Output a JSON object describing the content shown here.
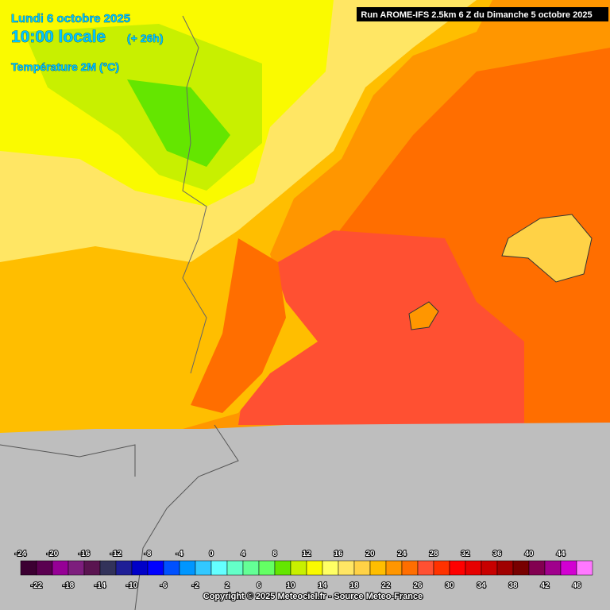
{
  "header": {
    "date": "Lundi 6 octobre 2025",
    "time": "10:00 locale",
    "lead": "(+ 26h)",
    "parameter": "Température 2M (°C)",
    "run": "Run AROME-IFS 2.5km 6 Z du Dimanche 5 octobre 2025"
  },
  "legend": {
    "top_labels": [
      "-24",
      "-20",
      "-16",
      "-12",
      "-8",
      "-4",
      "0",
      "4",
      "8",
      "12",
      "16",
      "20",
      "24",
      "28",
      "32",
      "36",
      "40",
      "44"
    ],
    "bottom_labels": [
      "-22",
      "-18",
      "-14",
      "-10",
      "-6",
      "-2",
      "2",
      "6",
      "10",
      "14",
      "18",
      "22",
      "26",
      "30",
      "34",
      "38",
      "42",
      "46"
    ],
    "colors": [
      "#3c0032",
      "#5a0050",
      "#960096",
      "#7d1e7d",
      "#5a1450",
      "#32325a",
      "#1e1e96",
      "#0000c8",
      "#0000ff",
      "#0050ff",
      "#0096ff",
      "#32c8ff",
      "#64ffff",
      "#64ffc8",
      "#64ff96",
      "#64ff64",
      "#64e600",
      "#c8f000",
      "#fafa00",
      "#ffff64",
      "#ffe664",
      "#ffd246",
      "#ffbe00",
      "#ff9600",
      "#ff6e00",
      "#ff5032",
      "#ff3200",
      "#ff0000",
      "#e60000",
      "#c80000",
      "#a00000",
      "#780000",
      "#820050",
      "#a0008c",
      "#d200d2",
      "#ff78ff"
    ]
  },
  "footer": {
    "copyright": "Copyright © 2025 Meteociel.fr - Source Meteo-France"
  }
}
